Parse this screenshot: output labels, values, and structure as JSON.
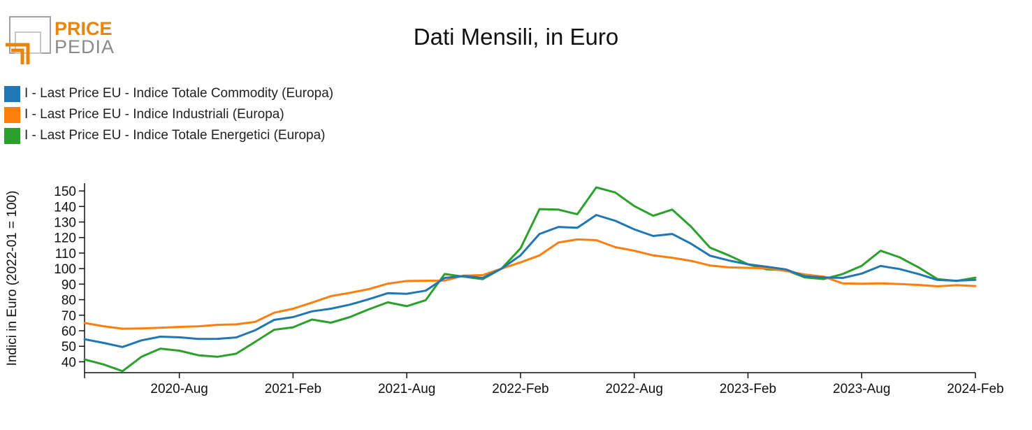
{
  "logo": {
    "top_text": "PRICE",
    "bottom_text": "PEDIA",
    "accent": "#E8850C",
    "gray": "#8a8a8a"
  },
  "colors": {
    "commodity": "#1f77b4",
    "industriali": "#ff7f0e",
    "energetici": "#2ca02c"
  },
  "chart_data": {
    "type": "line",
    "title": "Dati Mensili, in Euro",
    "ylabel": "Indici in Euro (2022-01 = 100)",
    "xlabel": "",
    "ylim": [
      33,
      155
    ],
    "yticks": [
      40,
      50,
      60,
      70,
      80,
      90,
      100,
      110,
      120,
      130,
      140,
      150
    ],
    "x_start": "2020-03",
    "x_end": "2024-02",
    "xticks": [
      {
        "month": "2020-08",
        "label": "2020-Aug"
      },
      {
        "month": "2021-02",
        "label": "2021-Feb"
      },
      {
        "month": "2021-08",
        "label": "2021-Aug"
      },
      {
        "month": "2022-02",
        "label": "2022-Feb"
      },
      {
        "month": "2022-08",
        "label": "2022-Aug"
      },
      {
        "month": "2023-02",
        "label": "2023-Feb"
      },
      {
        "month": "2023-08",
        "label": "2023-Aug"
      },
      {
        "month": "2024-02",
        "label": "2024-Feb"
      }
    ],
    "grid": false,
    "legend_position": "top-left",
    "x": [
      "2020-03",
      "2020-04",
      "2020-05",
      "2020-06",
      "2020-07",
      "2020-08",
      "2020-09",
      "2020-10",
      "2020-11",
      "2020-12",
      "2021-01",
      "2021-02",
      "2021-03",
      "2021-04",
      "2021-05",
      "2021-06",
      "2021-07",
      "2021-08",
      "2021-09",
      "2021-10",
      "2021-11",
      "2021-12",
      "2022-01",
      "2022-02",
      "2022-03",
      "2022-04",
      "2022-05",
      "2022-06",
      "2022-07",
      "2022-08",
      "2022-09",
      "2022-10",
      "2022-11",
      "2022-12",
      "2023-01",
      "2023-02",
      "2023-03",
      "2023-04",
      "2023-05",
      "2023-06",
      "2023-07",
      "2023-08",
      "2023-09",
      "2023-10",
      "2023-11",
      "2023-12",
      "2024-01",
      "2024-02"
    ],
    "series": [
      {
        "name": "I - Last Price EU - Indice Totale Commodity (Europa)",
        "color_key": "commodity",
        "values": [
          54.5,
          52.2,
          49.5,
          53.8,
          56.2,
          55.8,
          54.7,
          54.8,
          55.7,
          60.3,
          67.0,
          68.8,
          72.5,
          74.2,
          76.8,
          80.3,
          84.2,
          83.8,
          85.8,
          94.0,
          95.2,
          94.0,
          100,
          108.5,
          122.3,
          126.8,
          126.3,
          134.5,
          130.8,
          125.3,
          121.0,
          122.3,
          116.0,
          108.3,
          105.2,
          102.8,
          101.2,
          99.5,
          95.0,
          94.3,
          94.0,
          96.8,
          101.7,
          99.7,
          96.5,
          92.7,
          92.2,
          92.8
        ]
      },
      {
        "name": "I - Last Price EU - Indice Industriali (Europa)",
        "color_key": "industriali",
        "values": [
          65.0,
          62.9,
          61.3,
          61.5,
          61.9,
          62.5,
          62.8,
          63.8,
          64.1,
          65.7,
          71.6,
          74.2,
          78.1,
          82.3,
          84.4,
          86.8,
          90.3,
          92.0,
          92.2,
          92.3,
          95.5,
          95.8,
          100,
          104.0,
          108.5,
          116.8,
          118.8,
          118.3,
          113.8,
          111.5,
          108.5,
          107.0,
          105.0,
          102.0,
          100.8,
          100.5,
          100.2,
          98.5,
          96.2,
          94.8,
          90.5,
          90.2,
          90.5,
          90.1,
          89.5,
          88.6,
          89.3,
          88.8
        ]
      },
      {
        "name": "I - Last Price EU - Indice Totale Energetici (Europa)",
        "color_key": "energetici",
        "values": [
          41.5,
          38.3,
          34.0,
          43.2,
          48.5,
          47.2,
          44.2,
          43.2,
          45.2,
          52.8,
          60.6,
          62.2,
          67.2,
          65.2,
          68.8,
          73.8,
          78.3,
          75.8,
          79.7,
          96.5,
          94.8,
          93.2,
          100,
          113.0,
          138.3,
          138.0,
          135.0,
          152.3,
          149.0,
          140.3,
          134.0,
          138.0,
          127.0,
          113.5,
          108.5,
          102.8,
          99.5,
          99.0,
          94.3,
          93.3,
          96.5,
          101.8,
          111.5,
          107.3,
          100.8,
          93.3,
          92.0,
          94.2
        ]
      }
    ]
  }
}
